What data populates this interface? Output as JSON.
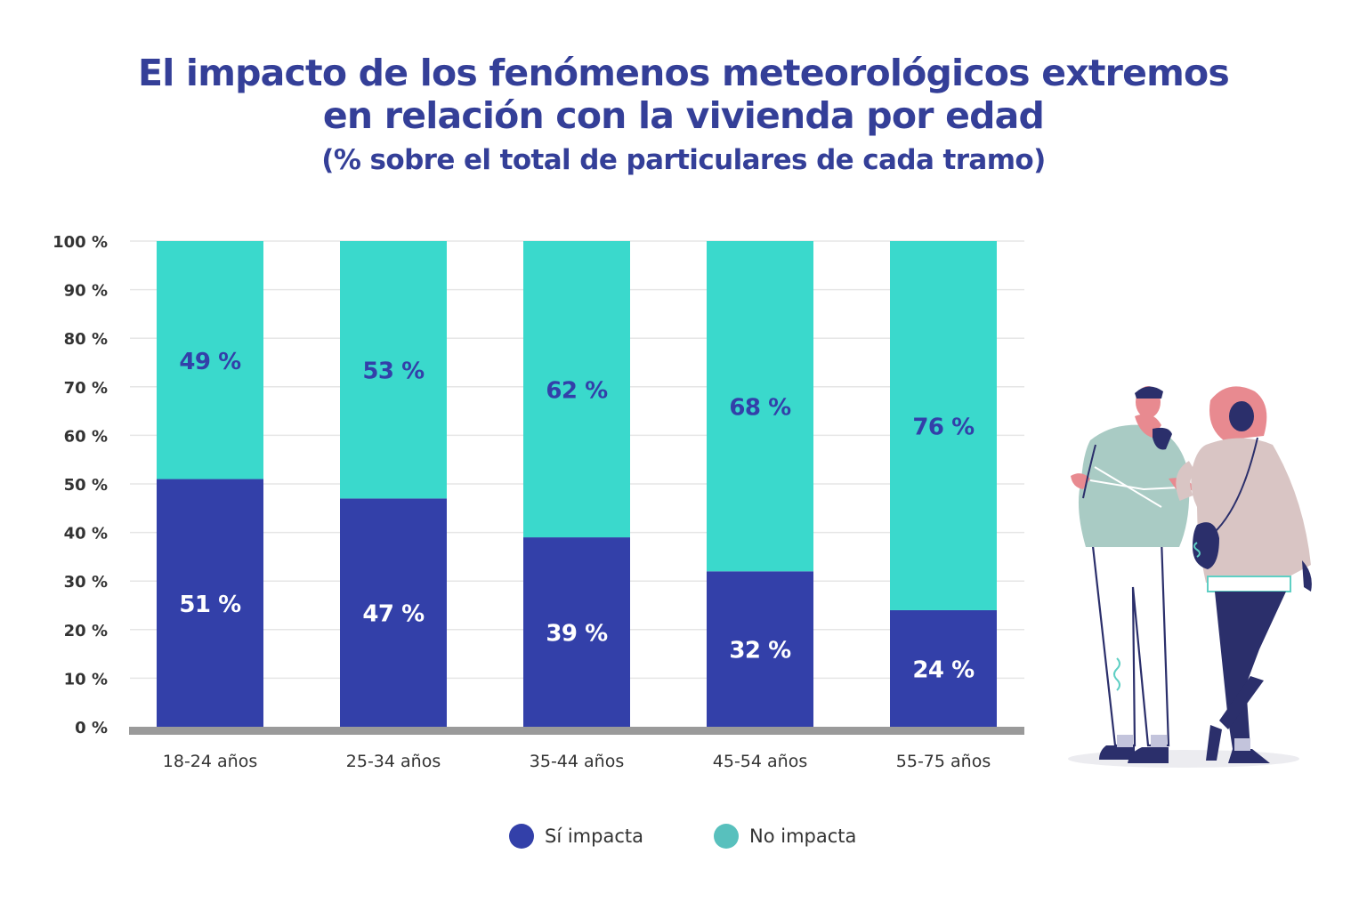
{
  "header": {
    "title_line1": "El impacto de los fenómenos meteorológicos extremos",
    "title_line2": "en relación con la vivienda por edad",
    "subtitle": "(% sobre el total de particulares de cada tramo)"
  },
  "colors": {
    "si_impacta": "#3340a9",
    "no_impacta": "#3ad9cc",
    "legend_no_impacta": "#58c0bd",
    "title": "#343f98",
    "axis_base": "#9a9a9a",
    "grid": "#e6e6e6",
    "tick_text": "#333333"
  },
  "chart_data": {
    "type": "bar",
    "stacked": true,
    "title": "El impacto de los fenómenos meteorológicos extremos en relación con la vivienda por edad",
    "subtitle": "(% sobre el total de particulares de cada tramo)",
    "xlabel": "",
    "ylabel": "",
    "ylim": [
      0,
      100
    ],
    "grid": true,
    "categories": [
      "18-24 años",
      "25-34 años",
      "35-44 años",
      "45-54 años",
      "55-75 años"
    ],
    "y_ticks": [
      0,
      10,
      20,
      30,
      40,
      50,
      60,
      70,
      80,
      90,
      100
    ],
    "y_tick_labels": [
      "0 %",
      "10 %",
      "20 %",
      "30 %",
      "40 %",
      "50 %",
      "60 %",
      "70 %",
      "80 %",
      "90 %",
      "100 %"
    ],
    "series": [
      {
        "name": "Sí impacta",
        "values": [
          51,
          47,
          39,
          32,
          24
        ],
        "labels": [
          "51 %",
          "47 %",
          "39 %",
          "32 %",
          "24 %"
        ]
      },
      {
        "name": "No impacta",
        "values": [
          49,
          53,
          62,
          68,
          76
        ],
        "labels": [
          "49 %",
          "53 %",
          "62 %",
          "68 %",
          "76 %"
        ]
      }
    ],
    "legend": {
      "position": "bottom-center",
      "entries": [
        "Sí impacta",
        "No impacta"
      ]
    }
  },
  "illustration": {
    "description": "couple-standing-illustration"
  }
}
